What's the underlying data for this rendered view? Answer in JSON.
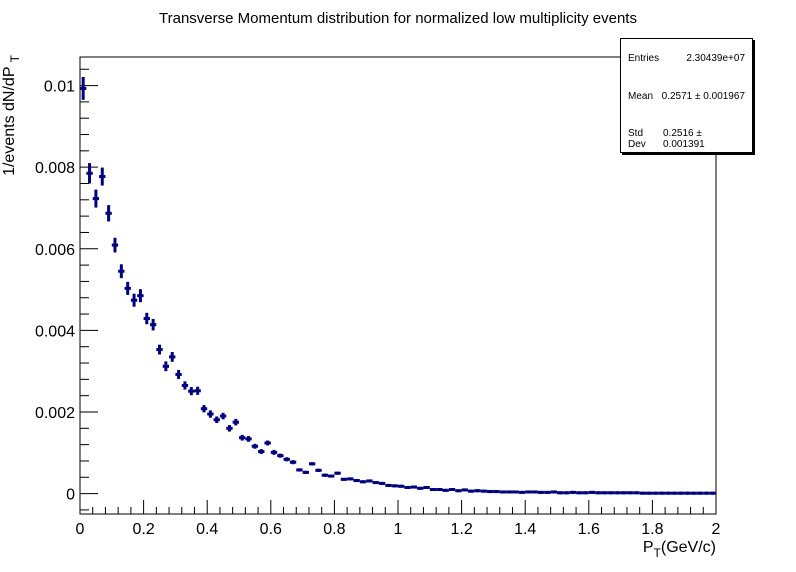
{
  "chart_data": {
    "type": "scatter",
    "title": "Transverse Momentum distribution for normalized low multiplicity events",
    "xlabel": "P_T(GeV/c)",
    "ylabel": "1/events dN/dP_T",
    "xlim": [
      0,
      2
    ],
    "ylim": [
      -0.0005,
      0.0107
    ],
    "x_ticks": [
      "0",
      "0.2",
      "0.4",
      "0.6",
      "0.8",
      "1",
      "1.2",
      "1.4",
      "1.6",
      "1.8",
      "2"
    ],
    "y_ticks": [
      "0",
      "0.002",
      "0.004",
      "0.006",
      "0.008",
      "0.01"
    ],
    "y_tick_values": [
      0,
      0.002,
      0.004,
      0.006,
      0.008,
      0.01
    ],
    "bin_width": 0.02,
    "marker_color": "#00007f",
    "series": [
      {
        "x": [
          0.01,
          0.03,
          0.05,
          0.07,
          0.09,
          0.11,
          0.13,
          0.15,
          0.17,
          0.19,
          0.21,
          0.23,
          0.25,
          0.27,
          0.29,
          0.31,
          0.33,
          0.35,
          0.37,
          0.39,
          0.41,
          0.43,
          0.45,
          0.47,
          0.49,
          0.51,
          0.53,
          0.55,
          0.57,
          0.59,
          0.61,
          0.63,
          0.65,
          0.67,
          0.69,
          0.71,
          0.73,
          0.75,
          0.77,
          0.79,
          0.81,
          0.83,
          0.85,
          0.87,
          0.89,
          0.91,
          0.93,
          0.95,
          0.97,
          0.99,
          1.01,
          1.03,
          1.05,
          1.07,
          1.09,
          1.11,
          1.13,
          1.15,
          1.17,
          1.19,
          1.21,
          1.23,
          1.25,
          1.27,
          1.29,
          1.31,
          1.33,
          1.35,
          1.37,
          1.39,
          1.41,
          1.43,
          1.45,
          1.47,
          1.49,
          1.51,
          1.53,
          1.55,
          1.57,
          1.59,
          1.61,
          1.63,
          1.65,
          1.67,
          1.69,
          1.71,
          1.73,
          1.75,
          1.77,
          1.79,
          1.81,
          1.83,
          1.85,
          1.87,
          1.89,
          1.91,
          1.93,
          1.95,
          1.97,
          1.99
        ],
        "y": [
          0.00993,
          0.00785,
          0.00723,
          0.00777,
          0.00687,
          0.00609,
          0.00545,
          0.00503,
          0.00474,
          0.00485,
          0.00429,
          0.00414,
          0.00353,
          0.00312,
          0.00335,
          0.00292,
          0.00265,
          0.00251,
          0.00252,
          0.00208,
          0.00195,
          0.00181,
          0.0019,
          0.0016,
          0.00175,
          0.00137,
          0.00134,
          0.00116,
          0.00103,
          0.00124,
          0.00101,
          0.00093,
          0.00084,
          0.00077,
          0.00058,
          0.00052,
          0.00073,
          0.00057,
          0.00045,
          0.00043,
          0.0005,
          0.00035,
          0.00036,
          0.00032,
          0.00029,
          0.00031,
          0.00027,
          0.00025,
          0.0002,
          0.00019,
          0.00018,
          0.00015,
          0.00016,
          0.00013,
          0.00015,
          0.0001,
          0.0001,
          8e-05,
          0.0001,
          7e-05,
          9e-05,
          6e-05,
          7e-05,
          6e-05,
          5e-05,
          5e-05,
          4e-05,
          4e-05,
          4e-05,
          3e-05,
          4e-05,
          4e-05,
          3e-05,
          3e-05,
          4e-05,
          2e-05,
          2e-05,
          3e-05,
          2e-05,
          2e-05,
          3e-05,
          2e-05,
          2e-05,
          2e-05,
          2e-05,
          2e-05,
          2e-05,
          2e-05,
          1e-05,
          1e-05,
          1e-05,
          1e-05,
          1e-05,
          1e-05,
          1e-05,
          1e-05,
          1e-05,
          1e-05,
          1e-05,
          1e-05
        ],
        "yerr": [
          0.00028,
          0.00025,
          0.00022,
          0.00022,
          0.0002,
          0.00018,
          0.00017,
          0.00016,
          0.00016,
          0.00016,
          0.00014,
          0.00014,
          0.00012,
          0.00012,
          0.00012,
          0.00011,
          0.0001,
          0.0001,
          0.0001,
          9e-05,
          9e-05,
          8e-05,
          8e-05,
          8e-05,
          8e-05,
          7e-05,
          7e-05,
          6e-05,
          6e-05,
          6e-05,
          6e-05,
          5e-05,
          5e-05,
          5e-05,
          4e-05,
          4e-05,
          4e-05,
          4e-05,
          4e-05,
          3e-05,
          3e-05,
          3e-05,
          3e-05,
          3e-05,
          3e-05,
          3e-05,
          3e-05,
          3e-05,
          2e-05,
          2e-05,
          2e-05,
          2e-05,
          2e-05,
          2e-05,
          2e-05,
          2e-05,
          2e-05,
          1e-05,
          1e-05,
          1e-05,
          1e-05,
          1e-05,
          1e-05,
          1e-05,
          1e-05,
          1e-05,
          1e-05,
          1e-05,
          1e-05,
          1e-05,
          1e-05,
          1e-05,
          1e-05,
          1e-05,
          1e-05,
          1e-05,
          1e-05,
          1e-05,
          1e-05,
          1e-05,
          1e-05,
          1e-05,
          1e-05,
          1e-05,
          1e-05,
          1e-05,
          1e-05,
          1e-05,
          1e-05,
          1e-05,
          1e-05,
          1e-05,
          1e-05,
          1e-05,
          1e-05,
          1e-05,
          1e-05,
          1e-05,
          1e-05,
          1e-05
        ]
      }
    ]
  },
  "stats": {
    "entries_label": "Entries",
    "entries_value": "2.30439e+07",
    "mean_label": "Mean",
    "mean_value": "0.2571 ± 0.001967",
    "std_label": "Std Dev",
    "std_value": "0.2516 ± 0.001391"
  }
}
